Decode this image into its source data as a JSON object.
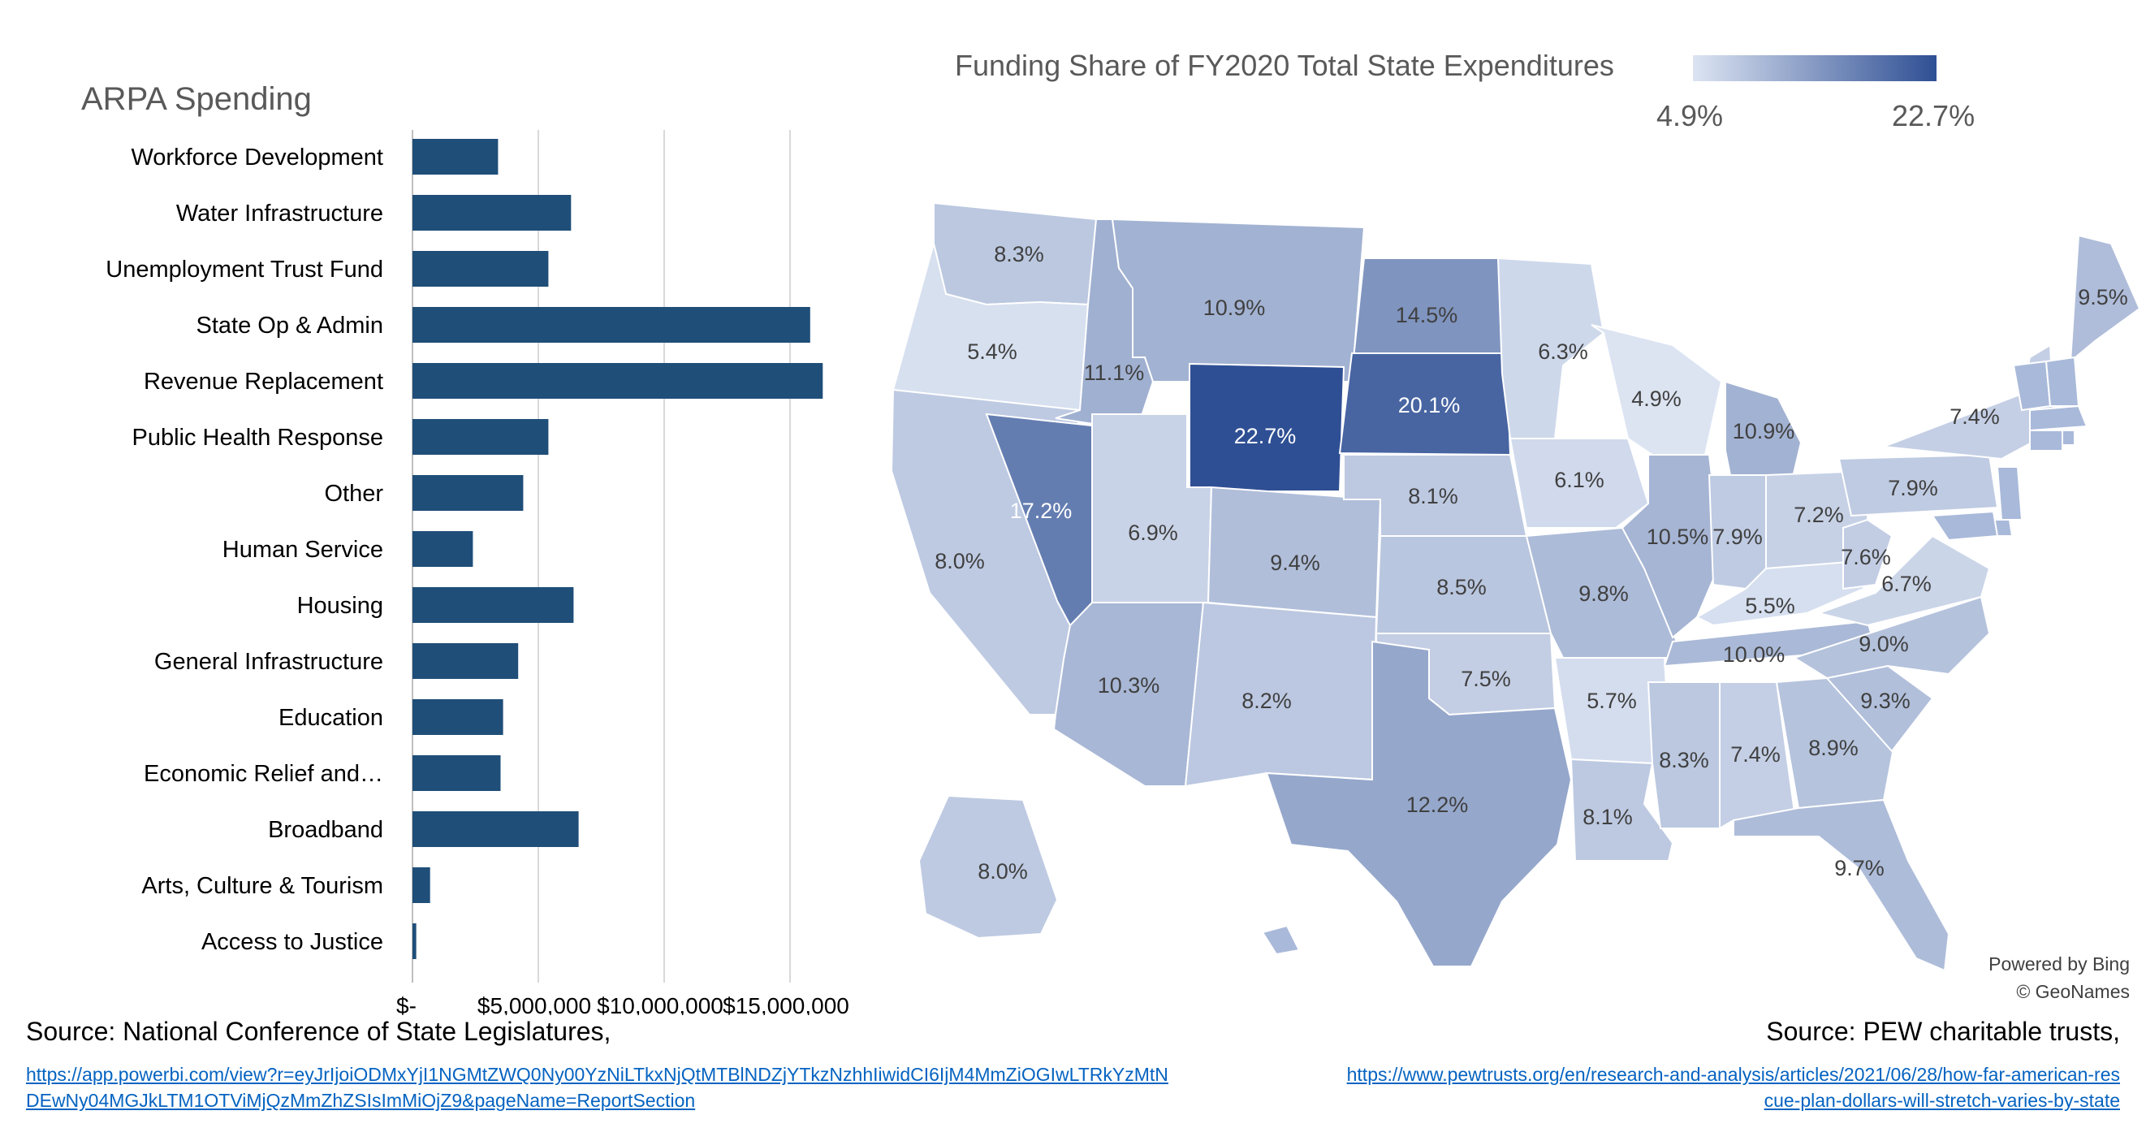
{
  "bar_title": "ARPA Spending",
  "map_title": "Funding Share of FY2020 Total State Expenditures",
  "legend": {
    "min_label": "4.9%",
    "max_label": "22.7%",
    "min_color": "#dce4f2",
    "max_color": "#2f4f94"
  },
  "attribution": {
    "line1": "Powered by Bing",
    "line2": "© GeoNames"
  },
  "sources": {
    "left_label": "Source: National Conference of State Legislatures,",
    "left_url": "https://app.powerbi.com/view?r=eyJrIjoiODMxYjI1NGMtZWQ0Ny00YzNiLTkxNjQtMTBlNDZjYTkzNzhhIiwidCI6IjM4MmZiOGIwLTRkYzMtNDEwNy04MGJkLTM1OTViMjQzMmZhZSIsImMiOjZ9&pageName=ReportSection",
    "right_label": "Source: PEW charitable trusts,",
    "right_url": "https://www.pewtrusts.org/en/research-and-analysis/articles/2021/06/28/how-far-american-rescue-plan-dollars-will-stretch-varies-by-state"
  },
  "chart_data": [
    {
      "type": "bar",
      "orientation": "horizontal",
      "title": "ARPA Spending",
      "categories": [
        "Workforce Development",
        "Water Infrastructure",
        "Unemployment Trust Fund",
        "State Op & Admin",
        "Revenue Replacement",
        "Public Health Response",
        "Other",
        "Human Service",
        "Housing",
        "General Infrastructure",
        "Education",
        "Economic Relief and…",
        "Broadband",
        "Arts, Culture & Tourism",
        "Access to Justice"
      ],
      "values": [
        3400000,
        6300000,
        5400000,
        15800000,
        16300000,
        5400000,
        4400000,
        2400000,
        6400000,
        4200000,
        3600000,
        3500000,
        6600000,
        700000,
        150000
      ],
      "xlim": [
        0,
        17500000
      ],
      "tick_labels": [
        "$-",
        "$5,000,000",
        "$10,000,000",
        "$15,000,000"
      ],
      "tick_values": [
        0,
        5000000,
        10000000,
        15000000
      ],
      "grid": true,
      "bar_color": "#1f4e79"
    },
    {
      "type": "choropleth",
      "title": "Funding Share of FY2020 Total State Expenditures",
      "value_range": [
        4.9,
        22.7
      ],
      "states": [
        {
          "state": "WA",
          "value": 8.3,
          "label": "8.3%"
        },
        {
          "state": "OR",
          "value": 5.4,
          "label": "5.4%"
        },
        {
          "state": "CA",
          "value": 8.0,
          "label": "8.0%"
        },
        {
          "state": "ID",
          "value": 11.1,
          "label": "11.1%"
        },
        {
          "state": "NV",
          "value": 17.2,
          "label": "17.2%"
        },
        {
          "state": "MT",
          "value": 10.9,
          "label": "10.9%"
        },
        {
          "state": "WY",
          "value": 22.7,
          "label": "22.7%"
        },
        {
          "state": "UT",
          "value": 6.9,
          "label": "6.9%"
        },
        {
          "state": "AZ",
          "value": 10.3,
          "label": "10.3%"
        },
        {
          "state": "CO",
          "value": 9.4,
          "label": "9.4%"
        },
        {
          "state": "NM",
          "value": 8.2,
          "label": "8.2%"
        },
        {
          "state": "ND",
          "value": 14.5,
          "label": "14.5%"
        },
        {
          "state": "SD",
          "value": 20.1,
          "label": "20.1%"
        },
        {
          "state": "NE",
          "value": 8.1,
          "label": "8.1%"
        },
        {
          "state": "KS",
          "value": 8.5,
          "label": "8.5%"
        },
        {
          "state": "OK",
          "value": 7.5,
          "label": "7.5%"
        },
        {
          "state": "TX",
          "value": 12.2,
          "label": "12.2%"
        },
        {
          "state": "MN",
          "value": 6.3,
          "label": "6.3%"
        },
        {
          "state": "IA",
          "value": 6.1,
          "label": "6.1%"
        },
        {
          "state": "MO",
          "value": 9.8,
          "label": "9.8%"
        },
        {
          "state": "AR",
          "value": 5.7,
          "label": "5.7%"
        },
        {
          "state": "LA",
          "value": 8.1,
          "label": "8.1%"
        },
        {
          "state": "WI",
          "value": 4.9,
          "label": "4.9%"
        },
        {
          "state": "IL",
          "value": 10.5,
          "label": "10.5%"
        },
        {
          "state": "MI",
          "value": 10.9,
          "label": "10.9%"
        },
        {
          "state": "IN",
          "value": 7.9,
          "label": "7.9%"
        },
        {
          "state": "OH",
          "value": 7.2,
          "label": "7.2%"
        },
        {
          "state": "KY",
          "value": 5.5,
          "label": "5.5%"
        },
        {
          "state": "TN",
          "value": 10.0,
          "label": "10.0%"
        },
        {
          "state": "MS",
          "value": 8.3,
          "label": "8.3%"
        },
        {
          "state": "AL",
          "value": 7.4,
          "label": "7.4%"
        },
        {
          "state": "GA",
          "value": 8.9,
          "label": "8.9%"
        },
        {
          "state": "FL",
          "value": 9.7,
          "label": "9.7%"
        },
        {
          "state": "SC",
          "value": 9.3,
          "label": "9.3%"
        },
        {
          "state": "NC",
          "value": 9.0,
          "label": "9.0%"
        },
        {
          "state": "VA",
          "value": 6.7,
          "label": "6.7%"
        },
        {
          "state": "WV",
          "value": 7.6,
          "label": "7.6%"
        },
        {
          "state": "PA",
          "value": 7.9,
          "label": "7.9%"
        },
        {
          "state": "NY",
          "value": 7.4,
          "label": "7.4%"
        },
        {
          "state": "ME",
          "value": 9.5,
          "label": "9.5%"
        },
        {
          "state": "AK",
          "value": 8.0,
          "label": "8.0%"
        },
        {
          "state": "VT",
          "value": null,
          "label": ""
        },
        {
          "state": "NH",
          "value": null,
          "label": ""
        },
        {
          "state": "MA",
          "value": null,
          "label": ""
        },
        {
          "state": "CT",
          "value": null,
          "label": ""
        },
        {
          "state": "RI",
          "value": null,
          "label": ""
        },
        {
          "state": "NJ",
          "value": null,
          "label": ""
        },
        {
          "state": "DE",
          "value": null,
          "label": ""
        },
        {
          "state": "MD",
          "value": null,
          "label": ""
        },
        {
          "state": "HI",
          "value": null,
          "label": ""
        }
      ]
    }
  ]
}
